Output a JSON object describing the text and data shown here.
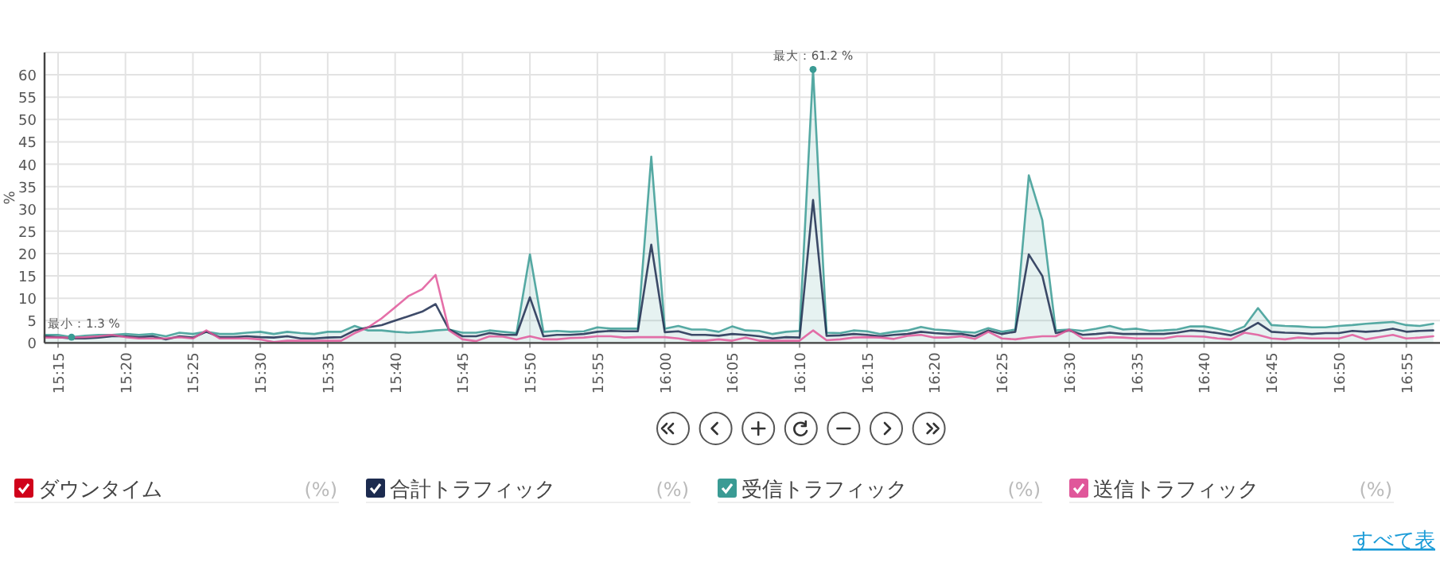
{
  "chart_data": {
    "type": "line",
    "ylabel": "%",
    "legend": "bottom",
    "grid": true,
    "xlim": [
      15.2333,
      16.9583
    ],
    "ylim": [
      0,
      65
    ],
    "yticks": [
      0,
      5,
      10,
      15,
      20,
      25,
      30,
      35,
      40,
      45,
      50,
      55,
      60
    ],
    "xticks": [
      {
        "value": 15.25,
        "label": "15:15"
      },
      {
        "value": 15.3333,
        "label": "15:20"
      },
      {
        "value": 15.4167,
        "label": "15:25"
      },
      {
        "value": 15.5,
        "label": "15:30"
      },
      {
        "value": 15.5833,
        "label": "15:35"
      },
      {
        "value": 15.6667,
        "label": "15:40"
      },
      {
        "value": 15.75,
        "label": "15:45"
      },
      {
        "value": 15.8333,
        "label": "15:50"
      },
      {
        "value": 15.9167,
        "label": "15:55"
      },
      {
        "value": 16,
        "label": "16:00"
      },
      {
        "value": 16.0833,
        "label": "16:05"
      },
      {
        "value": 16.1667,
        "label": "16:10"
      },
      {
        "value": 16.25,
        "label": "16:15"
      },
      {
        "value": 16.3333,
        "label": "16:20"
      },
      {
        "value": 16.4167,
        "label": "16:25"
      },
      {
        "value": 16.5,
        "label": "16:30"
      },
      {
        "value": 16.5833,
        "label": "16:35"
      },
      {
        "value": 16.6667,
        "label": "16:40"
      },
      {
        "value": 16.75,
        "label": "16:45"
      },
      {
        "value": 16.8333,
        "label": "16:50"
      },
      {
        "value": 16.9167,
        "label": "16:55"
      }
    ],
    "x": [
      15.2333,
      15.25,
      15.2667,
      15.2833,
      15.3,
      15.3167,
      15.3333,
      15.35,
      15.3667,
      15.3833,
      15.4,
      15.4167,
      15.4333,
      15.45,
      15.4667,
      15.4833,
      15.5,
      15.5167,
      15.5333,
      15.55,
      15.5667,
      15.5833,
      15.6,
      15.6167,
      15.6333,
      15.65,
      15.6667,
      15.6833,
      15.7,
      15.7167,
      15.7333,
      15.75,
      15.7667,
      15.7833,
      15.8,
      15.8167,
      15.8333,
      15.85,
      15.8667,
      15.8833,
      15.9,
      15.9167,
      15.9333,
      15.95,
      15.9667,
      15.9833,
      16,
      16.0167,
      16.0333,
      16.05,
      16.0667,
      16.0833,
      16.1,
      16.1167,
      16.1333,
      16.15,
      16.1667,
      16.1833,
      16.2,
      16.2167,
      16.2333,
      16.25,
      16.2667,
      16.2833,
      16.3,
      16.3167,
      16.3333,
      16.35,
      16.3667,
      16.3833,
      16.4,
      16.4167,
      16.4333,
      16.45,
      16.4667,
      16.4833,
      16.5,
      16.5167,
      16.5333,
      16.55,
      16.5667,
      16.5833,
      16.6,
      16.6167,
      16.6333,
      16.65,
      16.6667,
      16.6833,
      16.7,
      16.7167,
      16.7333,
      16.75,
      16.7667,
      16.7833,
      16.8,
      16.8167,
      16.8333,
      16.85,
      16.8667,
      16.8833,
      16.9,
      16.9167,
      16.9333,
      16.95
    ],
    "series": [
      {
        "name": "ダウンタイム",
        "color": "#d0021b",
        "values": [
          null,
          null,
          null,
          null,
          null,
          null,
          null,
          null,
          null,
          null,
          null,
          null,
          null,
          null,
          null,
          null,
          null,
          null,
          null,
          null,
          null,
          null,
          null,
          null,
          null,
          null,
          null,
          null,
          null,
          null,
          null,
          null,
          null,
          null,
          null,
          null,
          null,
          null,
          null,
          null,
          null,
          null,
          null,
          null,
          null,
          null,
          null,
          null,
          null,
          null,
          null,
          null,
          null,
          null,
          null,
          null,
          null,
          null,
          null,
          null,
          null,
          null,
          null,
          null,
          null,
          null,
          null,
          null,
          null,
          null,
          null,
          null,
          null,
          null,
          null,
          null,
          null,
          null,
          null,
          null,
          null,
          null,
          null,
          null,
          null,
          null,
          null,
          null,
          null,
          null,
          null,
          null,
          null,
          null,
          null,
          null,
          null,
          null,
          null,
          null,
          null,
          null,
          null,
          null
        ]
      },
      {
        "name": "合計トラフィック",
        "color": "#1c2b4f",
        "values": [
          1.5,
          1.3,
          1.0,
          1.0,
          1.2,
          1.5,
          1.5,
          1.3,
          1.5,
          0.8,
          1.5,
          1.2,
          2.5,
          1.3,
          1.3,
          1.5,
          1.3,
          1.2,
          1.5,
          1.0,
          1.0,
          1.2,
          1.3,
          2.8,
          3.5,
          4.0,
          5.0,
          6.0,
          7.0,
          8.7,
          3.0,
          1.5,
          1.5,
          2.2,
          1.8,
          1.8,
          10.2,
          1.5,
          1.8,
          1.8,
          2.0,
          2.5,
          2.7,
          2.6,
          2.6,
          22.0,
          2.4,
          2.6,
          1.8,
          1.8,
          1.6,
          2.0,
          1.8,
          1.5,
          1.0,
          1.3,
          1.2,
          32.0,
          1.6,
          1.7,
          2.0,
          1.8,
          1.5,
          1.8,
          2.0,
          2.5,
          2.2,
          2.0,
          2.0,
          1.5,
          2.8,
          2.0,
          2.5,
          19.8,
          15.0,
          2.2,
          2.8,
          1.8,
          2.0,
          2.3,
          2.0,
          2.0,
          2.0,
          2.0,
          2.3,
          2.8,
          2.6,
          2.2,
          1.7,
          2.8,
          4.5,
          2.5,
          2.3,
          2.2,
          2.0,
          2.2,
          2.2,
          2.7,
          2.5,
          2.7,
          3.2,
          2.5,
          2.7,
          2.8
        ]
      },
      {
        "name": "受信トラフィック",
        "type": "area",
        "color": "#3a9b94",
        "values": [
          1.8,
          1.8,
          1.3,
          1.6,
          1.8,
          1.8,
          2.0,
          1.8,
          2.0,
          1.5,
          2.3,
          2.0,
          2.5,
          2.0,
          2.0,
          2.3,
          2.5,
          2.0,
          2.5,
          2.2,
          2.0,
          2.5,
          2.5,
          3.8,
          2.8,
          2.8,
          2.5,
          2.3,
          2.5,
          2.8,
          3.0,
          2.3,
          2.3,
          2.8,
          2.5,
          2.2,
          19.8,
          2.5,
          2.7,
          2.5,
          2.6,
          3.5,
          3.2,
          3.2,
          3.2,
          41.7,
          3.2,
          3.8,
          3.0,
          3.0,
          2.5,
          3.7,
          2.8,
          2.7,
          2.0,
          2.5,
          2.7,
          61.2,
          2.3,
          2.2,
          2.8,
          2.6,
          2.0,
          2.5,
          2.8,
          3.6,
          3.0,
          2.8,
          2.5,
          2.3,
          3.3,
          2.5,
          3.0,
          37.5,
          27.5,
          2.8,
          3.0,
          2.7,
          3.2,
          3.8,
          3.0,
          3.2,
          2.7,
          2.8,
          3.0,
          3.7,
          3.7,
          3.2,
          2.5,
          3.7,
          7.8,
          4.0,
          3.8,
          3.7,
          3.5,
          3.5,
          3.8,
          4.0,
          4.3,
          4.5,
          4.7,
          4.0,
          3.8,
          4.3
        ]
      },
      {
        "name": "送信トラフィック",
        "color": "#e0579a",
        "values": [
          1.2,
          1.2,
          1.2,
          1.3,
          1.5,
          1.8,
          1.3,
          1.0,
          1.0,
          1.0,
          1.3,
          1.0,
          2.8,
          1.0,
          1.0,
          1.0,
          0.8,
          0.2,
          0.5,
          0.5,
          0.5,
          0.5,
          0.5,
          2.2,
          3.5,
          5.5,
          8.0,
          10.5,
          12.0,
          15.2,
          2.8,
          0.8,
          0.4,
          1.5,
          1.4,
          0.8,
          1.5,
          0.8,
          0.8,
          1.1,
          1.2,
          1.5,
          1.5,
          1.2,
          1.3,
          1.3,
          1.3,
          1.0,
          0.5,
          0.5,
          0.8,
          0.5,
          1.2,
          0.5,
          0.5,
          0.5,
          0.5,
          2.8,
          0.6,
          0.8,
          1.2,
          1.3,
          1.2,
          0.9,
          1.6,
          1.8,
          1.2,
          1.2,
          1.5,
          0.9,
          2.5,
          1.0,
          0.8,
          1.2,
          1.5,
          1.5,
          3.0,
          1.0,
          1.0,
          1.3,
          1.2,
          1.0,
          1.0,
          1.0,
          1.5,
          1.5,
          1.4,
          1.0,
          0.8,
          2.3,
          1.8,
          1.0,
          0.8,
          1.2,
          1.0,
          1.0,
          1.0,
          1.8,
          0.8,
          1.3,
          1.8,
          1.0,
          1.2,
          1.5
        ]
      }
    ],
    "annotations": [
      {
        "text": "最小：1.3 %",
        "x": 15.2667,
        "y": 1.3
      },
      {
        "text": "最大：61.2 %",
        "x": 16.1833,
        "y": 61.2
      },
      "(%)",
      "(%)",
      "(%)",
      "(%)",
      "すべて表"
    ]
  }
}
